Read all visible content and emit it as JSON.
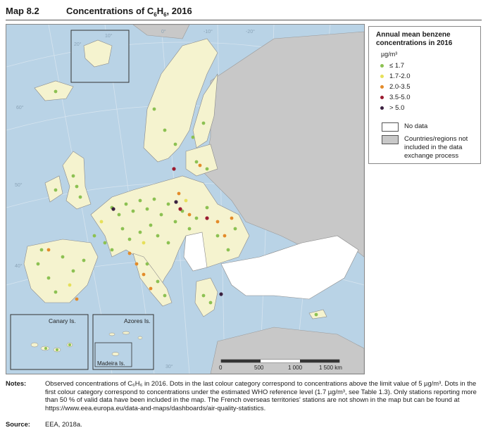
{
  "header": {
    "map_number": "Map 8.2",
    "title_pre": "Concentrations of C",
    "sub1": "6",
    "title_mid": "H",
    "sub2": "6",
    "title_post": ", 2016"
  },
  "legend": {
    "title": "Annual mean benzene concentrations in 2016",
    "unit": "µg/m³",
    "classes": [
      {
        "label": "≤ 1.7",
        "color": "#8cc152"
      },
      {
        "label": "1.7-2.0",
        "color": "#e6e05a"
      },
      {
        "label": "2.0-3.5",
        "color": "#e38b2a"
      },
      {
        "label": "3.5-5.0",
        "color": "#9b1b30"
      },
      {
        "label": "> 5.0",
        "color": "#3a2140"
      }
    ],
    "no_data": "No data",
    "not_included": "Countries/regions not included in the data exchange process"
  },
  "insets": {
    "canary": "Canary Is.",
    "azores": "Azores Is.",
    "madeira": "Madeira Is."
  },
  "scale": {
    "labels": [
      "0",
      "500",
      "1 000",
      "1 500 km"
    ]
  },
  "graticule": {
    "labels": [
      "60°",
      "50°",
      "40°",
      "30°",
      "20°",
      "10°",
      "0°",
      "-10°",
      "-20°"
    ]
  },
  "notes": {
    "label": "Notes:",
    "text": "Observed concentrations of C₆H₆ in 2016. Dots in the last colour category correspond to concentrations above the limit value of 5 µg/m³. Dots in the first colour category correspond to concentrations under the estimated WHO reference level (1.7 µg/m³, see Table 1.3). Only stations reporting more than 50 % of valid data have been included in the map. The French overseas territories' stations are not shown in the map but can be found at https://www.eea.europa.eu/data-and-maps/dashboards/air-quality-statistics."
  },
  "source": {
    "label": "Source:",
    "text": "EEA, 2018a."
  },
  "colors": {
    "sea": "#b9d3e6",
    "data_land": "#f5f3cf",
    "no_data": "#ffffff",
    "not_included": "#c8c8c8",
    "border": "#7a7a7a"
  }
}
